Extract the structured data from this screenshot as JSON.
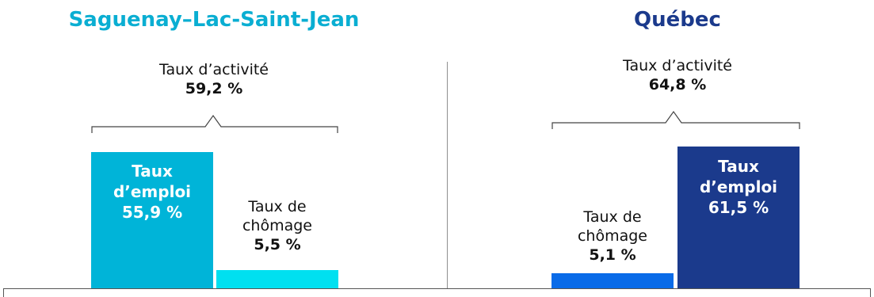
{
  "colors": {
    "left_title": "#0aaed2",
    "right_title": "#1b3a8c",
    "left_emploi": "#00b4d8",
    "left_chomage": "#00e0f0",
    "right_chomage": "#0a6be8",
    "right_emploi": "#1b3a8c"
  },
  "chart_data": [
    {
      "type": "bar",
      "title": "Saguenay–Lac-Saint-Jean",
      "activity_label": "Taux d’activité",
      "activity_value": "59,2 %",
      "activity": 59.2,
      "series": [
        {
          "name_line1": "Taux",
          "name_line2": "d’emploi",
          "value_label": "55,9 %",
          "value": 55.9
        },
        {
          "name_line1": "Taux de",
          "name_line2": "chômage",
          "value_label": "5,5 %",
          "value": 5.5
        }
      ]
    },
    {
      "type": "bar",
      "title": "Québec",
      "activity_label": "Taux d’activité",
      "activity_value": "64,8 %",
      "activity": 64.8,
      "series": [
        {
          "name_line1": "Taux de",
          "name_line2": "chômage",
          "value_label": "5,1 %",
          "value": 5.1
        },
        {
          "name_line1": "Taux",
          "name_line2": "d’emploi",
          "value_label": "61,5 %",
          "value": 61.5
        }
      ]
    }
  ]
}
